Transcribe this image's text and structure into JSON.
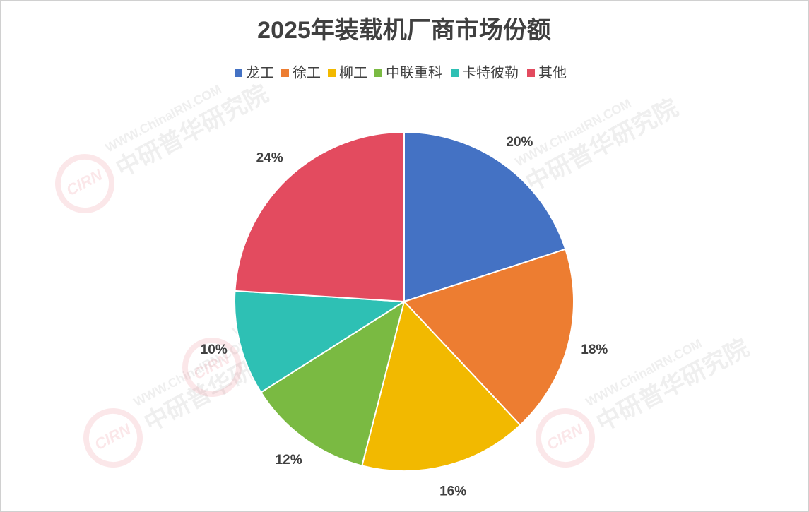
{
  "chart_data": {
    "type": "pie",
    "title": "2025年装载机厂商市场份额",
    "categories": [
      "龙工",
      "徐工",
      "柳工",
      "中联重科",
      "卡特彼勒",
      "其他"
    ],
    "values": [
      20,
      18,
      16,
      12,
      10,
      24
    ],
    "value_labels": [
      "20%",
      "18%",
      "16%",
      "12%",
      "10%",
      "24%"
    ],
    "colors": [
      "#4472c4",
      "#ed7d31",
      "#f2b900",
      "#7aba42",
      "#2ec0b4",
      "#e34b5f"
    ],
    "legend": "top",
    "watermark": {
      "site": "WWW.ChinaIRN.COM",
      "name": "中研普华研究院",
      "logo": "CIRN"
    }
  }
}
